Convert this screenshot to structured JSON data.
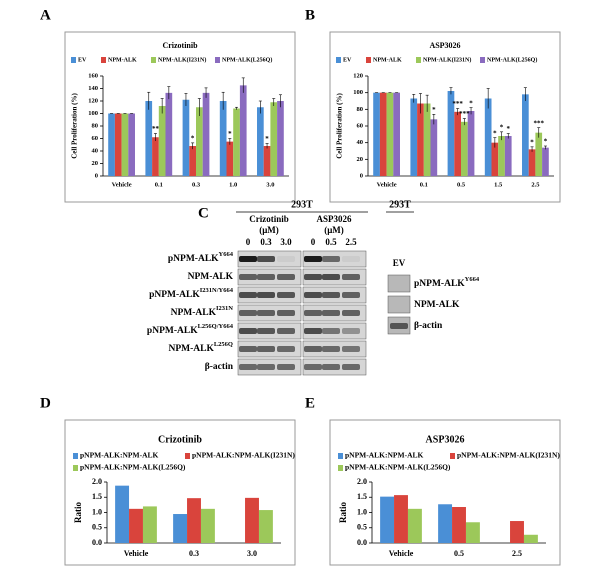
{
  "chart_data": [
    {
      "panel": "A",
      "type": "bar",
      "title": "Crizotinib",
      "ylabel": "Cell Proliferation (%)",
      "categories": [
        "Vehicle",
        "0.1",
        "0.3",
        "1.0",
        "3.0"
      ],
      "ylim": [
        0,
        160
      ],
      "yticks": [
        0,
        20,
        40,
        60,
        80,
        100,
        120,
        140,
        160
      ],
      "series": [
        {
          "name": "EV",
          "color": "#4a8fd6",
          "values": [
            100,
            120,
            122,
            120,
            110
          ],
          "errors": [
            0,
            14,
            10,
            14,
            10
          ]
        },
        {
          "name": "NPM-ALK",
          "color": "#d9443c",
          "values": [
            100,
            62,
            48,
            55,
            48
          ],
          "errors": [
            0,
            6,
            5,
            5,
            4
          ]
        },
        {
          "name": "NPM-ALK(I231N)",
          "color": "#9cc85a",
          "values": [
            100,
            112,
            110,
            108,
            118
          ],
          "errors": [
            0,
            12,
            14,
            2,
            6
          ]
        },
        {
          "name": "NPM-ALK(L256Q)",
          "color": "#8a6bbf",
          "values": [
            100,
            133,
            133,
            145,
            120
          ],
          "errors": [
            0,
            10,
            8,
            12,
            10
          ]
        }
      ],
      "annotations": [
        {
          "series": 1,
          "index": 1,
          "text": "**"
        },
        {
          "series": 1,
          "index": 2,
          "text": "*"
        },
        {
          "series": 1,
          "index": 3,
          "text": "*"
        },
        {
          "series": 1,
          "index": 4,
          "text": "*"
        }
      ]
    },
    {
      "panel": "B",
      "type": "bar",
      "title": "ASP3026",
      "ylabel": "Cell Proliferation (%)",
      "categories": [
        "Vehicle",
        "0.1",
        "0.5",
        "1.5",
        "2.5"
      ],
      "ylim": [
        0,
        120
      ],
      "yticks": [
        0,
        20,
        40,
        60,
        80,
        100,
        120
      ],
      "series": [
        {
          "name": "EV",
          "color": "#4a8fd6",
          "values": [
            100,
            93,
            102,
            93,
            98
          ],
          "errors": [
            0,
            5,
            4,
            12,
            8
          ]
        },
        {
          "name": "NPM-ALK",
          "color": "#d9443c",
          "values": [
            100,
            87,
            77,
            40,
            32
          ],
          "errors": [
            0,
            12,
            4,
            6,
            3
          ]
        },
        {
          "name": "NPM-ALK(I231N)",
          "color": "#9cc85a",
          "values": [
            100,
            87,
            65,
            48,
            52
          ],
          "errors": [
            0,
            10,
            4,
            5,
            6
          ]
        },
        {
          "name": "NPM-ALK(L256Q)",
          "color": "#8a6bbf",
          "values": [
            100,
            68,
            78,
            48,
            34
          ],
          "errors": [
            0,
            6,
            4,
            3,
            2
          ]
        }
      ],
      "annotations": [
        {
          "series": 3,
          "index": 1,
          "text": "*"
        },
        {
          "series": 1,
          "index": 2,
          "text": "***"
        },
        {
          "series": 2,
          "index": 2,
          "text": "***"
        },
        {
          "series": 3,
          "index": 2,
          "text": "*"
        },
        {
          "series": 1,
          "index": 3,
          "text": "*"
        },
        {
          "series": 2,
          "index": 3,
          "text": "*"
        },
        {
          "series": 3,
          "index": 3,
          "text": "*"
        },
        {
          "series": 1,
          "index": 4,
          "text": "*"
        },
        {
          "series": 2,
          "index": 4,
          "text": "***"
        },
        {
          "series": 3,
          "index": 4,
          "text": "*"
        }
      ]
    },
    {
      "panel": "D",
      "type": "bar",
      "title": "Crizotinib",
      "ylabel": "Ratio",
      "categories": [
        "Vehicle",
        "0.3",
        "3.0"
      ],
      "ylim": [
        0,
        2
      ],
      "yticks": [
        {
          "value": 0,
          "label": "0.0"
        },
        {
          "value": 0.5,
          "label": "0.5"
        },
        {
          "value": 1,
          "label": "1.0"
        },
        {
          "value": 1.5,
          "label": "1.5"
        },
        {
          "value": 2,
          "label": "2.0"
        }
      ],
      "series": [
        {
          "name": "pNPM-ALK:NPM-ALK",
          "color": "#4a8fd6",
          "values": [
            1.88,
            0.95,
            0
          ]
        },
        {
          "name": "pNPM-ALK:NPM-ALK(I231N)",
          "color": "#d9443c",
          "values": [
            1.12,
            1.47,
            1.48
          ]
        },
        {
          "name": "pNPM-ALK:NPM-ALK(L256Q)",
          "color": "#9cc85a",
          "values": [
            1.2,
            1.12,
            1.08
          ]
        }
      ]
    },
    {
      "panel": "E",
      "type": "bar",
      "title": "ASP3026",
      "ylabel": "Ratio",
      "categories": [
        "Vehicle",
        "0.5",
        "2.5"
      ],
      "ylim": [
        0,
        2
      ],
      "yticks": [
        {
          "value": 0,
          "label": "0.0"
        },
        {
          "value": 0.5,
          "label": "0.5"
        },
        {
          "value": 1,
          "label": "1.0"
        },
        {
          "value": 1.5,
          "label": "1.5"
        },
        {
          "value": 2,
          "label": "2.0"
        }
      ],
      "series": [
        {
          "name": "pNPM-ALK:NPM-ALK",
          "color": "#4a8fd6",
          "values": [
            1.52,
            1.27,
            0
          ]
        },
        {
          "name": "pNPM-ALK:NPM-ALK(I231N)",
          "color": "#d9443c",
          "values": [
            1.57,
            1.18,
            0.72
          ]
        },
        {
          "name": "pNPM-ALK:NPM-ALK(L256Q)",
          "color": "#9cc85a",
          "values": [
            1.12,
            0.68,
            0.27
          ]
        }
      ]
    }
  ],
  "blot": {
    "panel": "C",
    "cell_line": "293T",
    "drug1": "Crizotinib",
    "drug2": "ASP3026",
    "unit": "(μM)",
    "doses1": [
      "0",
      "0.3",
      "3.0"
    ],
    "doses2": [
      "0",
      "0.5",
      "2.5"
    ],
    "rows": [
      {
        "base": "pNPM-ALK",
        "sup": "Y664"
      },
      {
        "base": "NPM-ALK"
      },
      {
        "base": "pNPM-ALK",
        "sup": "I231N/Y664"
      },
      {
        "base": "NPM-ALK",
        "sup": "I231N"
      },
      {
        "base": "pNPM-ALK",
        "sup": "L256Q/Y664"
      },
      {
        "base": "NPM-ALK",
        "sup": "L256Q"
      },
      {
        "base": "β-actin"
      }
    ],
    "side_cell_line": "293T",
    "side_lane": "EV",
    "side_rows": [
      {
        "base": "pNPM-ALK",
        "sup": "Y664"
      },
      {
        "base": "NPM-ALK"
      },
      {
        "base": "β-actin"
      }
    ]
  }
}
